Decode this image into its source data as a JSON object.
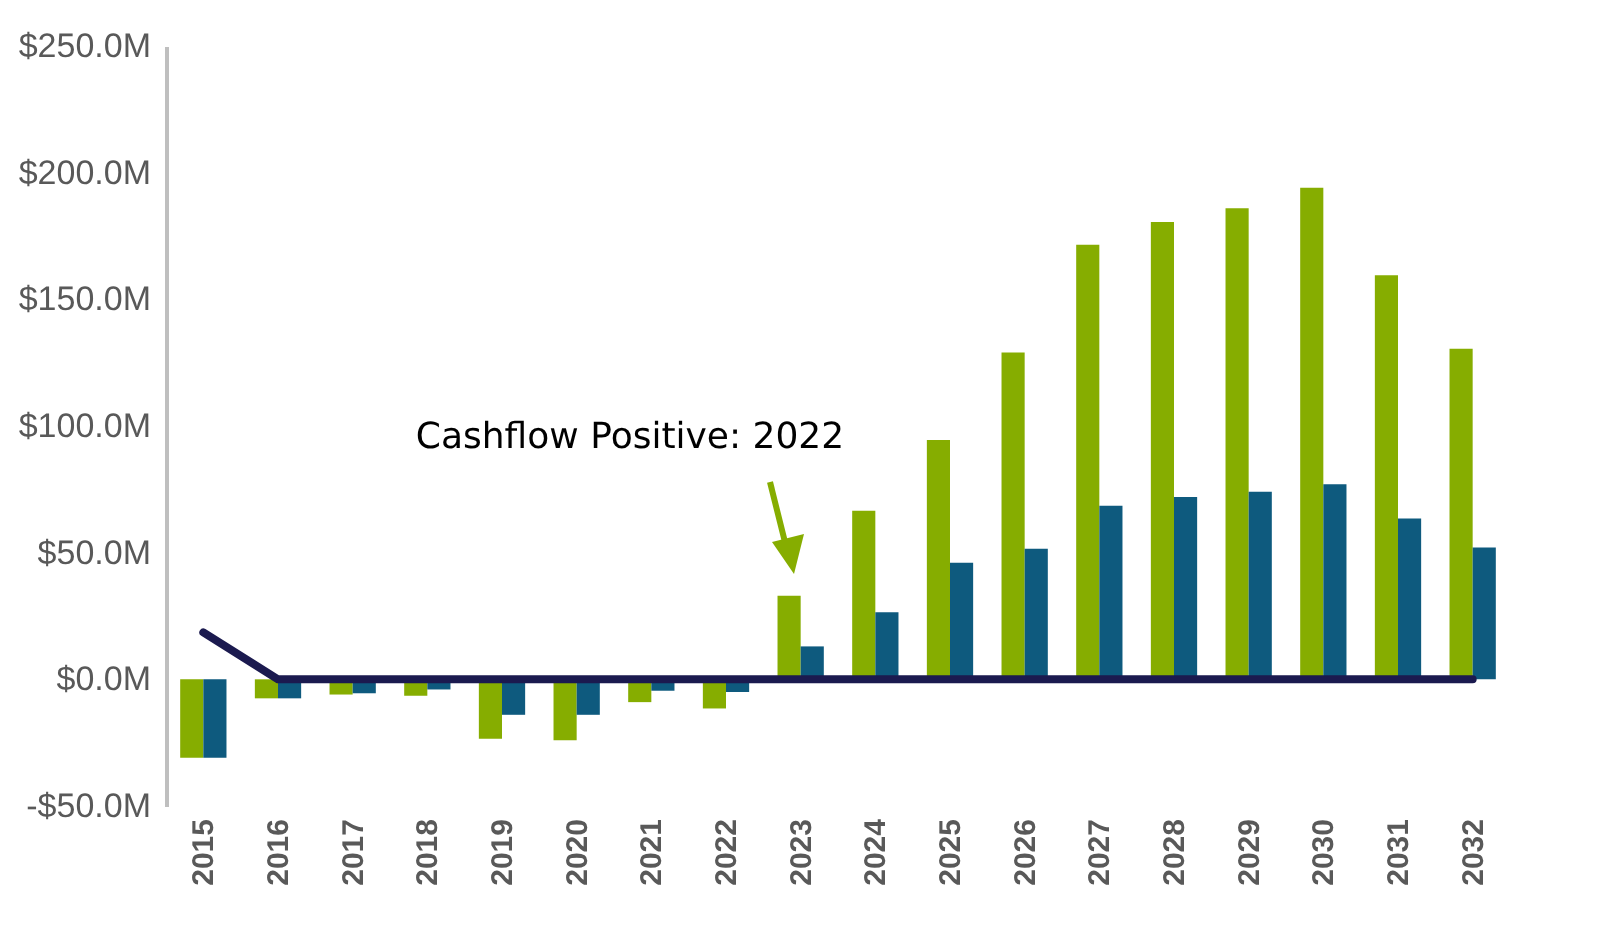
{
  "chart_data": {
    "type": "bar",
    "categories": [
      "2015",
      "2016",
      "2017",
      "2018",
      "2019",
      "2020",
      "2021",
      "2022",
      "2023",
      "2024",
      "2025",
      "2026",
      "2027",
      "2028",
      "2029",
      "2030",
      "2031",
      "2032"
    ],
    "series": [
      {
        "color": "#86ad00",
        "values": [
          -31,
          -7.5,
          -6,
          -6.5,
          -23.5,
          -24,
          -9,
          -11.5,
          33,
          66.5,
          94.5,
          129,
          171.5,
          180.5,
          186,
          194,
          159.5,
          130.5
        ]
      },
      {
        "color": "#0e5a7e",
        "values": [
          -31,
          -7.5,
          -5.5,
          -4,
          -14,
          -14,
          -4.5,
          -5,
          13,
          26.5,
          46,
          51.5,
          68.5,
          72,
          74,
          77,
          63.5,
          52
        ]
      },
      {
        "type": "line",
        "color": "#1b1a4f",
        "values": [
          18.5,
          0,
          0,
          0,
          0,
          0,
          0,
          0,
          0,
          0,
          0,
          0,
          0,
          0,
          0,
          0,
          0,
          0
        ]
      }
    ],
    "ylim": [
      -50,
      250
    ],
    "yticks": [
      {
        "value": -50,
        "label": "-$50.0M"
      },
      {
        "value": 0,
        "label": "$0.0M"
      },
      {
        "value": 50,
        "label": "$50.0M"
      },
      {
        "value": 100,
        "label": "$100.0M"
      },
      {
        "value": 150,
        "label": "$150.0M"
      },
      {
        "value": 200,
        "label": "$200.0M"
      },
      {
        "value": 250,
        "label": "$250.0M"
      }
    ],
    "grid": false,
    "annotations": [
      "Cashflow Positive: 2022"
    ]
  }
}
